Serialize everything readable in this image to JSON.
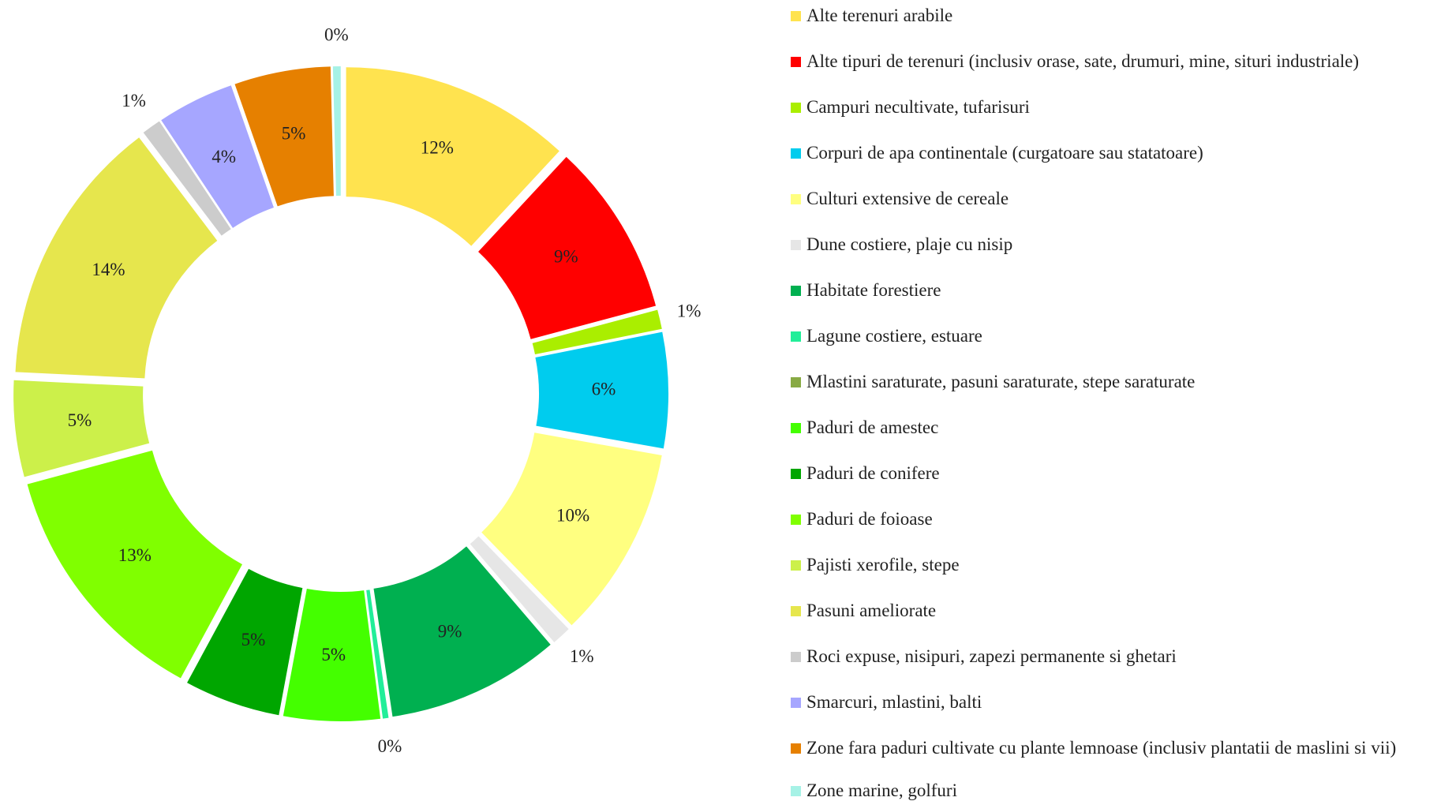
{
  "chart_data": {
    "type": "donut",
    "categories": [
      "Alte terenuri arabile",
      "Alte tipuri de terenuri (inclusiv orase, sate, drumuri, mine, situri industriale)",
      "Campuri necultivate, tufarisuri",
      "Corpuri de apa continentale (curgatoare sau statatoare)",
      "Culturi extensive de cereale",
      "Dune costiere, plaje cu nisip",
      "Habitate forestiere",
      "Lagune costiere, estuare",
      "Mlastini saraturate, pasuni saraturate, stepe saraturate",
      "Paduri de amestec",
      "Paduri de conifere",
      "Paduri de foioase",
      "Pajisti xerofile, stepe",
      "Pasuni ameliorate",
      "Roci expuse, nisipuri, zapezi permanente si ghetari",
      "Smarcuri, mlastini, balti",
      "Zone fara paduri cultivate cu plante lemnoase (inclusiv plantatii de maslini si vii)",
      "Zone marine, golfuri"
    ],
    "values": [
      12,
      9,
      1,
      6,
      10,
      1,
      9,
      0.3,
      0,
      5,
      5,
      13,
      5,
      14,
      1,
      4,
      5,
      0.4
    ],
    "value_labels": [
      "12%",
      "9%",
      "1%",
      "6%",
      "10%",
      "1%",
      "9%",
      "0%",
      null,
      "5%",
      "5%",
      "13%",
      "5%",
      "14%",
      "1%",
      "4%",
      "5%",
      "0%"
    ],
    "colors": [
      "#ffe34f",
      "#ff0000",
      "#aaee00",
      "#00ccee",
      "#ffff80",
      "#e6e6e6",
      "#00b050",
      "#22ee99",
      "#88aa44",
      "#44ff00",
      "#00a600",
      "#80ff00",
      "#ccf04a",
      "#e6e64d",
      "#cccccc",
      "#a6a6ff",
      "#e68000",
      "#a6f2e6"
    ],
    "legend": "right"
  }
}
